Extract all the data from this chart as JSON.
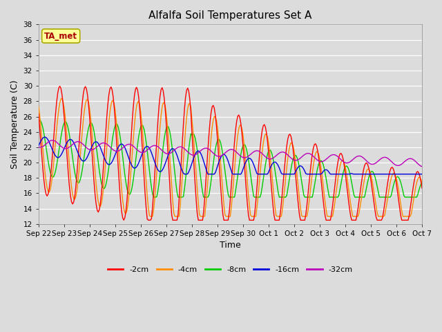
{
  "title": "Alfalfa Soil Temperatures Set A",
  "xlabel": "Time",
  "ylabel": "Soil Temperature (C)",
  "ylim": [
    12,
    38
  ],
  "yticks": [
    12,
    14,
    16,
    18,
    20,
    22,
    24,
    26,
    28,
    30,
    32,
    34,
    36,
    38
  ],
  "background_color": "#dcdcdc",
  "plot_bg_color": "#dcdcdc",
  "line_colors": {
    "-2cm": "#ff0000",
    "-4cm": "#ff8c00",
    "-8cm": "#00cc00",
    "-16cm": "#0000dd",
    "-32cm": "#bb00bb"
  },
  "annotation_text": "TA_met",
  "annotation_color": "#aa0000",
  "annotation_bg": "#ffff99",
  "annotation_edge": "#aaaa00",
  "x_labels": [
    "Sep 22",
    "Sep 23",
    "Sep 24",
    "Sep 25",
    "Sep 26",
    "Sep 27",
    "Sep 28",
    "Sep 29",
    "Sep 30",
    "Oct 1",
    "Oct 2",
    "Oct 3",
    "Oct 4",
    "Oct 5",
    "Oct 6",
    "Oct 7"
  ],
  "hours_per_day": 24,
  "total_days": 15
}
